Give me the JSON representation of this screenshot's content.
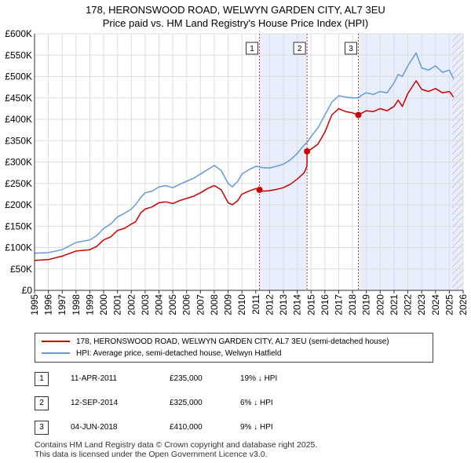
{
  "chart_data": {
    "type": "line",
    "title": "178, HERONSWOOD ROAD, WELWYN GARDEN CITY, AL7 3EU",
    "subtitle": "Price paid vs. HM Land Registry's House Price Index (HPI)",
    "xlabel": "",
    "ylabel": "",
    "xlim": [
      1995,
      2026
    ],
    "ylim": [
      0,
      600000
    ],
    "grid": true,
    "legend_position": "below",
    "y_tick_values": [
      0,
      50000,
      100000,
      150000,
      200000,
      250000,
      300000,
      350000,
      400000,
      450000,
      500000,
      550000,
      600000
    ],
    "y_tick_labels": [
      "£0",
      "£50K",
      "£100K",
      "£150K",
      "£200K",
      "£250K",
      "£300K",
      "£350K",
      "£400K",
      "£450K",
      "£500K",
      "£550K",
      "£600K"
    ],
    "x_tick_values": [
      1995,
      1996,
      1997,
      1998,
      1999,
      2000,
      2001,
      2002,
      2003,
      2004,
      2005,
      2006,
      2007,
      2008,
      2009,
      2010,
      2011,
      2012,
      2013,
      2014,
      2015,
      2016,
      2017,
      2018,
      2019,
      2020,
      2021,
      2022,
      2023,
      2024,
      2025,
      2026
    ],
    "x_tick_labels": [
      "1995",
      "1996",
      "1997",
      "1998",
      "1999",
      "2000",
      "2001",
      "2002",
      "2003",
      "2004",
      "2005",
      "2006",
      "2007",
      "2008",
      "2009",
      "2010",
      "2011",
      "2012",
      "2013",
      "2014",
      "2015",
      "2016",
      "2017",
      "2018",
      "2019",
      "2020",
      "2021",
      "2022",
      "2023",
      "2024",
      "2025",
      "2026"
    ],
    "series": [
      {
        "name": "178, HERONSWOOD ROAD, WELWYN GARDEN CITY, AL7 3EU (semi-detached house)",
        "color": "#cc0000",
        "x": [
          1995.0,
          1996.0,
          1997.0,
          1998.0,
          1999.0,
          1999.5,
          2000.0,
          2000.5,
          2001.0,
          2001.5,
          2002.0,
          2002.3,
          2002.7,
          2003.0,
          2003.5,
          2004.0,
          2004.5,
          2005.0,
          2005.5,
          2006.0,
          2006.5,
          2007.0,
          2007.5,
          2008.0,
          2008.5,
          2009.0,
          2009.3,
          2009.7,
          2010.0,
          2010.5,
          2011.0,
          2011.27,
          2011.5,
          2012.0,
          2012.5,
          2013.0,
          2013.5,
          2014.0,
          2014.5,
          2014.7,
          2014.71,
          2015.0,
          2015.5,
          2016.0,
          2016.5,
          2017.0,
          2017.5,
          2018.0,
          2018.42,
          2018.7,
          2019.0,
          2019.5,
          2020.0,
          2020.5,
          2021.0,
          2021.3,
          2021.6,
          2022.0,
          2022.3,
          2022.6,
          2023.0,
          2023.5,
          2024.0,
          2024.5,
          2025.0,
          2025.3
        ],
        "values": [
          70000,
          72000,
          80000,
          92000,
          95000,
          103000,
          118000,
          125000,
          140000,
          145000,
          155000,
          160000,
          182000,
          190000,
          195000,
          205000,
          207000,
          203000,
          210000,
          215000,
          220000,
          228000,
          238000,
          245000,
          235000,
          205000,
          200000,
          210000,
          225000,
          232000,
          238000,
          235000,
          232000,
          233000,
          236000,
          240000,
          248000,
          260000,
          275000,
          290000,
          325000,
          330000,
          342000,
          370000,
          410000,
          425000,
          418000,
          415000,
          410000,
          415000,
          420000,
          418000,
          425000,
          420000,
          430000,
          445000,
          430000,
          460000,
          475000,
          490000,
          470000,
          465000,
          472000,
          462000,
          465000,
          452000
        ]
      },
      {
        "name": "HPI: Average price, semi-detached house, Welwyn Hatfield",
        "color": "#6699dd",
        "x": [
          1995.0,
          1996.0,
          1997.0,
          1998.0,
          1999.0,
          1999.5,
          2000.0,
          2000.5,
          2001.0,
          2001.5,
          2002.0,
          2002.3,
          2002.7,
          2003.0,
          2003.5,
          2004.0,
          2004.5,
          2005.0,
          2005.5,
          2006.0,
          2006.5,
          2007.0,
          2007.5,
          2008.0,
          2008.5,
          2009.0,
          2009.3,
          2009.7,
          2010.0,
          2010.5,
          2011.0,
          2011.5,
          2012.0,
          2012.5,
          2013.0,
          2013.5,
          2014.0,
          2014.5,
          2014.7,
          2015.0,
          2015.5,
          2016.0,
          2016.5,
          2017.0,
          2017.5,
          2018.0,
          2018.42,
          2018.7,
          2019.0,
          2019.5,
          2020.0,
          2020.5,
          2021.0,
          2021.3,
          2021.6,
          2022.0,
          2022.3,
          2022.6,
          2023.0,
          2023.5,
          2024.0,
          2024.5,
          2025.0,
          2025.3
        ],
        "values": [
          87000,
          88000,
          95000,
          112000,
          118000,
          128000,
          145000,
          155000,
          172000,
          180000,
          190000,
          200000,
          218000,
          228000,
          232000,
          242000,
          245000,
          240000,
          248000,
          255000,
          262000,
          272000,
          282000,
          292000,
          280000,
          250000,
          242000,
          255000,
          272000,
          282000,
          290000,
          287000,
          286000,
          290000,
          295000,
          305000,
          320000,
          340000,
          345000,
          360000,
          380000,
          410000,
          440000,
          455000,
          452000,
          450000,
          450000,
          457000,
          462000,
          458000,
          465000,
          462000,
          485000,
          505000,
          500000,
          525000,
          540000,
          555000,
          520000,
          515000,
          525000,
          510000,
          515000,
          495000
        ]
      }
    ],
    "sales": [
      {
        "id": "1",
        "x": 2011.27,
        "value": 235000,
        "date": "11-APR-2011",
        "price": "£235,000",
        "hpi": "19% ↓ HPI"
      },
      {
        "id": "2",
        "x": 2014.71,
        "value": 325000,
        "date": "12-SEP-2014",
        "price": "£325,000",
        "hpi": "6% ↓ HPI"
      },
      {
        "id": "3",
        "x": 2018.42,
        "value": 410000,
        "date": "04-JUN-2018",
        "price": "£410,000",
        "hpi": "9% ↓ HPI"
      }
    ],
    "shaded_ranges": [
      [
        2011.27,
        2014.71
      ],
      [
        2018.42,
        2026
      ]
    ],
    "hatched_from": 2025.2
  },
  "colors": {
    "price_line": "#cc0000",
    "hpi_line": "#6699dd",
    "shade": "#e8eefb",
    "grid": "#dddddd",
    "marker_line": "#cc3333"
  },
  "footer": {
    "line1": "Contains HM Land Registry data © Crown copyright and database right 2025.",
    "line2": "This data is licensed under the Open Government Licence v3.0."
  }
}
